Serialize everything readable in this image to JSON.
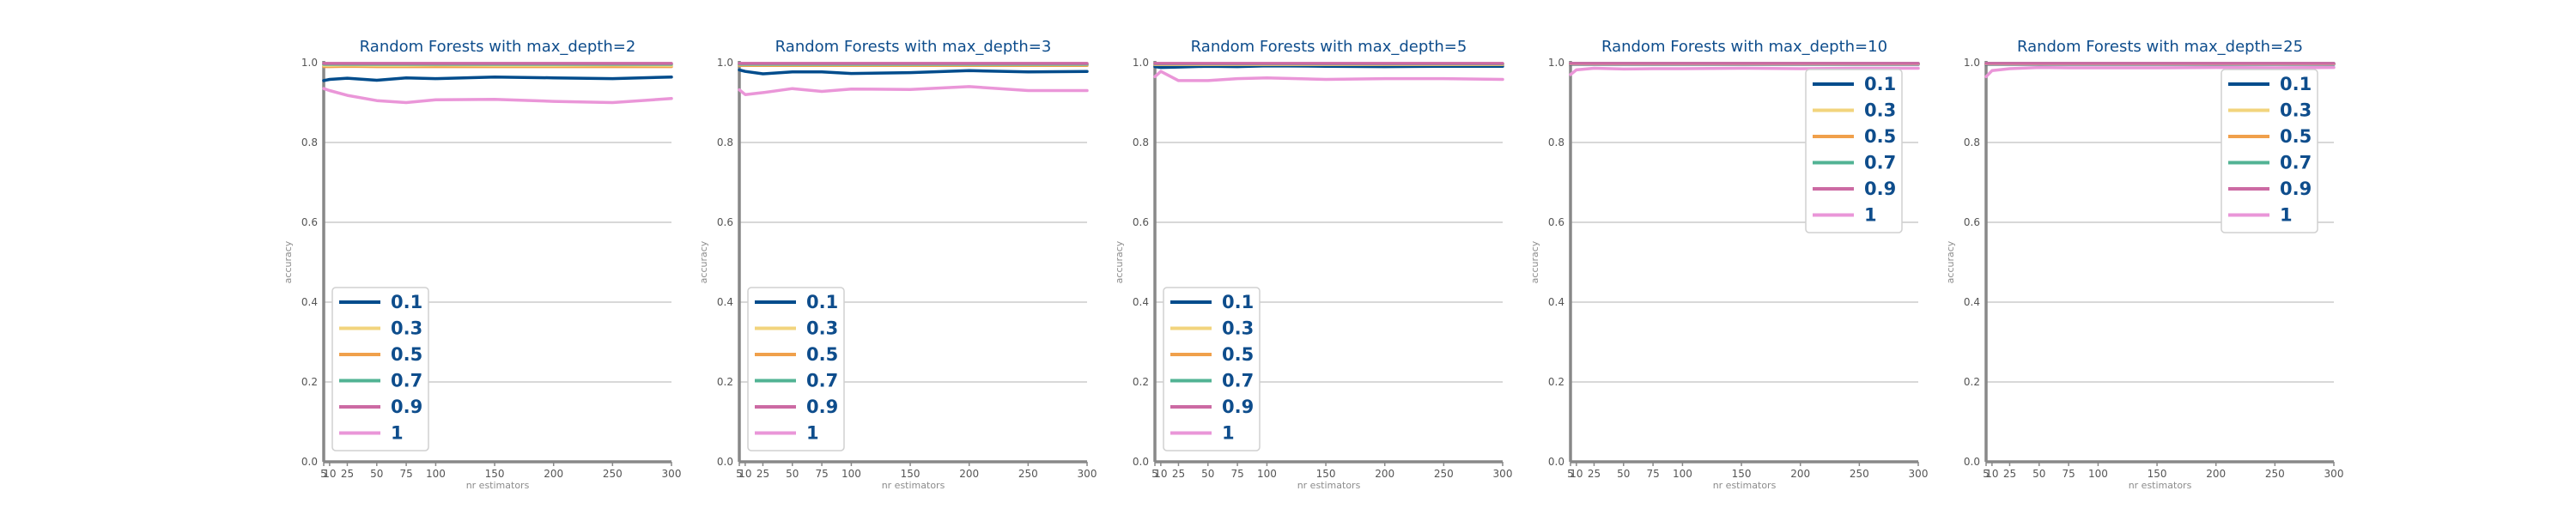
{
  "colors": {
    "0.1": "#004c8c",
    "0.3": "#f2d47d",
    "0.5": "#f0a04b",
    "0.7": "#52b394",
    "0.9": "#cc6aa3",
    "1": "#ea96d8"
  },
  "chart_data": [
    {
      "type": "line",
      "title": "Random Forests with max_depth=2",
      "xlabel": "nr estimators",
      "ylabel": "accuracy",
      "xlim": [
        5,
        300
      ],
      "ylim": [
        0,
        1.0
      ],
      "x_ticks": [
        "5",
        "10",
        "25",
        "50",
        "75",
        "100",
        "150",
        "200",
        "250",
        "300"
      ],
      "y_ticks": [
        "0.0",
        "0.2",
        "0.4",
        "0.6",
        "0.8",
        "1.0"
      ],
      "legend_position": "lower-left",
      "x": [
        5,
        10,
        25,
        50,
        75,
        100,
        150,
        200,
        250,
        300
      ],
      "series": [
        {
          "name": "0.1",
          "values": [
            0.955,
            0.958,
            0.961,
            0.956,
            0.962,
            0.96,
            0.964,
            0.962,
            0.96,
            0.964
          ]
        },
        {
          "name": "0.3",
          "values": [
            0.993,
            0.993,
            0.994,
            0.993,
            0.993,
            0.994,
            0.993,
            0.993,
            0.994,
            0.993
          ]
        },
        {
          "name": "0.5",
          "values": [
            0.99,
            0.99,
            0.991,
            0.99,
            0.99,
            0.99,
            0.99,
            0.99,
            0.99,
            0.99
          ]
        },
        {
          "name": "0.7",
          "values": [
            0.996,
            0.996,
            0.996,
            0.996,
            0.996,
            0.996,
            0.996,
            0.996,
            0.996,
            0.996
          ]
        },
        {
          "name": "0.9",
          "values": [
            0.998,
            0.998,
            0.998,
            0.998,
            0.998,
            0.998,
            0.998,
            0.998,
            0.998,
            0.998
          ]
        },
        {
          "name": "1",
          "values": [
            0.935,
            0.93,
            0.918,
            0.905,
            0.9,
            0.907,
            0.908,
            0.903,
            0.9,
            0.91
          ]
        }
      ]
    },
    {
      "type": "line",
      "title": "Random Forests with max_depth=3",
      "xlabel": "nr estimators",
      "ylabel": "accuracy",
      "xlim": [
        5,
        300
      ],
      "ylim": [
        0,
        1.0
      ],
      "x_ticks": [
        "5",
        "10",
        "25",
        "50",
        "75",
        "100",
        "150",
        "200",
        "250",
        "300"
      ],
      "y_ticks": [
        "0.0",
        "0.2",
        "0.4",
        "0.6",
        "0.8",
        "1.0"
      ],
      "legend_position": "lower-left",
      "x": [
        5,
        10,
        25,
        50,
        75,
        100,
        150,
        200,
        250,
        300
      ],
      "series": [
        {
          "name": "0.1",
          "values": [
            0.982,
            0.978,
            0.972,
            0.977,
            0.977,
            0.973,
            0.975,
            0.98,
            0.977,
            0.978
          ]
        },
        {
          "name": "0.3",
          "values": [
            0.995,
            0.995,
            0.995,
            0.995,
            0.995,
            0.995,
            0.995,
            0.995,
            0.995,
            0.995
          ]
        },
        {
          "name": "0.5",
          "values": [
            0.993,
            0.993,
            0.993,
            0.993,
            0.993,
            0.993,
            0.993,
            0.993,
            0.993,
            0.993
          ]
        },
        {
          "name": "0.7",
          "values": [
            0.996,
            0.996,
            0.996,
            0.996,
            0.996,
            0.996,
            0.996,
            0.996,
            0.996,
            0.996
          ]
        },
        {
          "name": "0.9",
          "values": [
            0.998,
            0.998,
            0.998,
            0.998,
            0.998,
            0.998,
            0.998,
            0.998,
            0.998,
            0.998
          ]
        },
        {
          "name": "1",
          "values": [
            0.932,
            0.92,
            0.925,
            0.935,
            0.928,
            0.934,
            0.933,
            0.94,
            0.93,
            0.93
          ]
        }
      ]
    },
    {
      "type": "line",
      "title": "Random Forests with max_depth=5",
      "xlabel": "nr estimators",
      "ylabel": "accuracy",
      "xlim": [
        5,
        300
      ],
      "ylim": [
        0,
        1.0
      ],
      "x_ticks": [
        "5",
        "10",
        "25",
        "50",
        "75",
        "100",
        "150",
        "200",
        "250",
        "300"
      ],
      "y_ticks": [
        "0.0",
        "0.2",
        "0.4",
        "0.6",
        "0.8",
        "1.0"
      ],
      "legend_position": "lower-left",
      "x": [
        5,
        10,
        25,
        50,
        75,
        100,
        150,
        200,
        250,
        300
      ],
      "series": [
        {
          "name": "0.1",
          "values": [
            0.99,
            0.988,
            0.989,
            0.991,
            0.99,
            0.992,
            0.991,
            0.99,
            0.991,
            0.991
          ]
        },
        {
          "name": "0.3",
          "values": [
            0.996,
            0.996,
            0.996,
            0.996,
            0.996,
            0.996,
            0.996,
            0.996,
            0.996,
            0.996
          ]
        },
        {
          "name": "0.5",
          "values": [
            0.995,
            0.995,
            0.995,
            0.995,
            0.995,
            0.995,
            0.995,
            0.995,
            0.995,
            0.995
          ]
        },
        {
          "name": "0.7",
          "values": [
            0.997,
            0.997,
            0.997,
            0.997,
            0.997,
            0.997,
            0.997,
            0.997,
            0.997,
            0.997
          ]
        },
        {
          "name": "0.9",
          "values": [
            0.998,
            0.998,
            0.998,
            0.998,
            0.998,
            0.998,
            0.998,
            0.998,
            0.998,
            0.998
          ]
        },
        {
          "name": "1",
          "values": [
            0.965,
            0.978,
            0.955,
            0.955,
            0.96,
            0.962,
            0.958,
            0.96,
            0.96,
            0.958
          ]
        }
      ]
    },
    {
      "type": "line",
      "title": "Random Forests with max_depth=10",
      "xlabel": "nr estimators",
      "ylabel": "accuracy",
      "xlim": [
        5,
        300
      ],
      "ylim": [
        0,
        1.0
      ],
      "x_ticks": [
        "5",
        "10",
        "25",
        "50",
        "75",
        "100",
        "150",
        "200",
        "250",
        "300"
      ],
      "y_ticks": [
        "0.0",
        "0.2",
        "0.4",
        "0.6",
        "0.8",
        "1.0"
      ],
      "legend_position": "upper-right",
      "x": [
        5,
        10,
        25,
        50,
        75,
        100,
        150,
        200,
        250,
        300
      ],
      "series": [
        {
          "name": "0.1",
          "values": [
            0.996,
            0.996,
            0.996,
            0.996,
            0.996,
            0.996,
            0.996,
            0.996,
            0.996,
            0.996
          ]
        },
        {
          "name": "0.3",
          "values": [
            0.997,
            0.997,
            0.997,
            0.997,
            0.997,
            0.997,
            0.997,
            0.997,
            0.997,
            0.997
          ]
        },
        {
          "name": "0.5",
          "values": [
            0.997,
            0.997,
            0.997,
            0.997,
            0.997,
            0.997,
            0.997,
            0.997,
            0.997,
            0.997
          ]
        },
        {
          "name": "0.7",
          "values": [
            0.998,
            0.998,
            0.998,
            0.998,
            0.998,
            0.998,
            0.998,
            0.998,
            0.998,
            0.998
          ]
        },
        {
          "name": "0.9",
          "values": [
            0.998,
            0.998,
            0.998,
            0.998,
            0.998,
            0.998,
            0.998,
            0.998,
            0.998,
            0.998
          ]
        },
        {
          "name": "1",
          "values": [
            0.97,
            0.982,
            0.986,
            0.984,
            0.985,
            0.985,
            0.986,
            0.985,
            0.986,
            0.986
          ]
        }
      ]
    },
    {
      "type": "line",
      "title": "Random Forests with max_depth=25",
      "xlabel": "nr estimators",
      "ylabel": "accuracy",
      "xlim": [
        5,
        300
      ],
      "ylim": [
        0,
        1.0
      ],
      "x_ticks": [
        "5",
        "10",
        "25",
        "50",
        "75",
        "100",
        "150",
        "200",
        "250",
        "300"
      ],
      "y_ticks": [
        "0.0",
        "0.2",
        "0.4",
        "0.6",
        "0.8",
        "1.0"
      ],
      "legend_position": "upper-right",
      "x": [
        5,
        10,
        25,
        50,
        75,
        100,
        150,
        200,
        250,
        300
      ],
      "series": [
        {
          "name": "0.1",
          "values": [
            0.996,
            0.996,
            0.996,
            0.996,
            0.996,
            0.996,
            0.996,
            0.996,
            0.996,
            0.996
          ]
        },
        {
          "name": "0.3",
          "values": [
            0.997,
            0.997,
            0.997,
            0.997,
            0.997,
            0.997,
            0.997,
            0.997,
            0.997,
            0.997
          ]
        },
        {
          "name": "0.5",
          "values": [
            0.997,
            0.997,
            0.997,
            0.997,
            0.997,
            0.997,
            0.997,
            0.997,
            0.997,
            0.997
          ]
        },
        {
          "name": "0.7",
          "values": [
            0.998,
            0.998,
            0.998,
            0.998,
            0.998,
            0.998,
            0.998,
            0.998,
            0.998,
            0.998
          ]
        },
        {
          "name": "0.9",
          "values": [
            0.998,
            0.998,
            0.998,
            0.998,
            0.998,
            0.998,
            0.998,
            0.998,
            0.998,
            0.998
          ]
        },
        {
          "name": "1",
          "values": [
            0.965,
            0.98,
            0.985,
            0.988,
            0.987,
            0.987,
            0.987,
            0.988,
            0.987,
            0.988
          ]
        }
      ]
    }
  ]
}
